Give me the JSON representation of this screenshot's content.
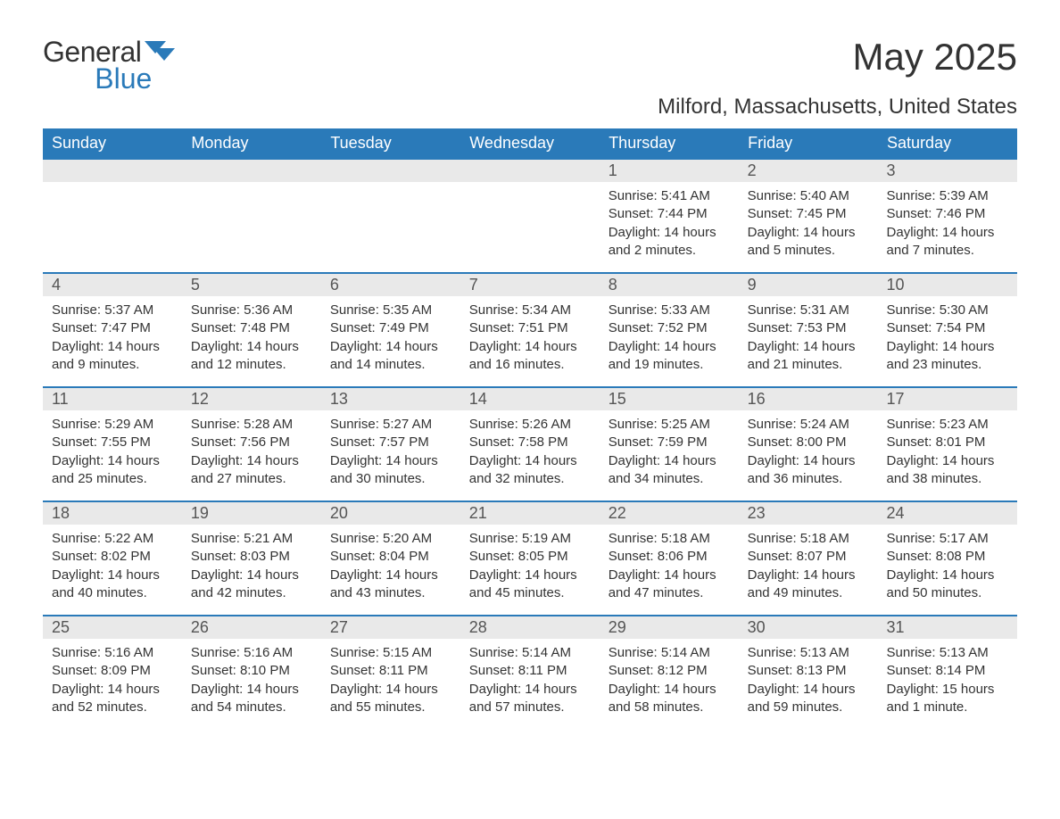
{
  "logo": {
    "general": "General",
    "blue": "Blue"
  },
  "header": {
    "title": "May 2025",
    "subtitle": "Milford, Massachusetts, United States"
  },
  "colors": {
    "accent": "#2a7ab9",
    "header_text": "#ffffff",
    "daynum_bg": "#e9e9e9",
    "text": "#333333",
    "bg": "#ffffff"
  },
  "calendar": {
    "day_headers": [
      "Sunday",
      "Monday",
      "Tuesday",
      "Wednesday",
      "Thursday",
      "Friday",
      "Saturday"
    ],
    "weeks": [
      [
        null,
        null,
        null,
        null,
        {
          "n": "1",
          "sunrise": "Sunrise: 5:41 AM",
          "sunset": "Sunset: 7:44 PM",
          "daylight": "Daylight: 14 hours and 2 minutes."
        },
        {
          "n": "2",
          "sunrise": "Sunrise: 5:40 AM",
          "sunset": "Sunset: 7:45 PM",
          "daylight": "Daylight: 14 hours and 5 minutes."
        },
        {
          "n": "3",
          "sunrise": "Sunrise: 5:39 AM",
          "sunset": "Sunset: 7:46 PM",
          "daylight": "Daylight: 14 hours and 7 minutes."
        }
      ],
      [
        {
          "n": "4",
          "sunrise": "Sunrise: 5:37 AM",
          "sunset": "Sunset: 7:47 PM",
          "daylight": "Daylight: 14 hours and 9 minutes."
        },
        {
          "n": "5",
          "sunrise": "Sunrise: 5:36 AM",
          "sunset": "Sunset: 7:48 PM",
          "daylight": "Daylight: 14 hours and 12 minutes."
        },
        {
          "n": "6",
          "sunrise": "Sunrise: 5:35 AM",
          "sunset": "Sunset: 7:49 PM",
          "daylight": "Daylight: 14 hours and 14 minutes."
        },
        {
          "n": "7",
          "sunrise": "Sunrise: 5:34 AM",
          "sunset": "Sunset: 7:51 PM",
          "daylight": "Daylight: 14 hours and 16 minutes."
        },
        {
          "n": "8",
          "sunrise": "Sunrise: 5:33 AM",
          "sunset": "Sunset: 7:52 PM",
          "daylight": "Daylight: 14 hours and 19 minutes."
        },
        {
          "n": "9",
          "sunrise": "Sunrise: 5:31 AM",
          "sunset": "Sunset: 7:53 PM",
          "daylight": "Daylight: 14 hours and 21 minutes."
        },
        {
          "n": "10",
          "sunrise": "Sunrise: 5:30 AM",
          "sunset": "Sunset: 7:54 PM",
          "daylight": "Daylight: 14 hours and 23 minutes."
        }
      ],
      [
        {
          "n": "11",
          "sunrise": "Sunrise: 5:29 AM",
          "sunset": "Sunset: 7:55 PM",
          "daylight": "Daylight: 14 hours and 25 minutes."
        },
        {
          "n": "12",
          "sunrise": "Sunrise: 5:28 AM",
          "sunset": "Sunset: 7:56 PM",
          "daylight": "Daylight: 14 hours and 27 minutes."
        },
        {
          "n": "13",
          "sunrise": "Sunrise: 5:27 AM",
          "sunset": "Sunset: 7:57 PM",
          "daylight": "Daylight: 14 hours and 30 minutes."
        },
        {
          "n": "14",
          "sunrise": "Sunrise: 5:26 AM",
          "sunset": "Sunset: 7:58 PM",
          "daylight": "Daylight: 14 hours and 32 minutes."
        },
        {
          "n": "15",
          "sunrise": "Sunrise: 5:25 AM",
          "sunset": "Sunset: 7:59 PM",
          "daylight": "Daylight: 14 hours and 34 minutes."
        },
        {
          "n": "16",
          "sunrise": "Sunrise: 5:24 AM",
          "sunset": "Sunset: 8:00 PM",
          "daylight": "Daylight: 14 hours and 36 minutes."
        },
        {
          "n": "17",
          "sunrise": "Sunrise: 5:23 AM",
          "sunset": "Sunset: 8:01 PM",
          "daylight": "Daylight: 14 hours and 38 minutes."
        }
      ],
      [
        {
          "n": "18",
          "sunrise": "Sunrise: 5:22 AM",
          "sunset": "Sunset: 8:02 PM",
          "daylight": "Daylight: 14 hours and 40 minutes."
        },
        {
          "n": "19",
          "sunrise": "Sunrise: 5:21 AM",
          "sunset": "Sunset: 8:03 PM",
          "daylight": "Daylight: 14 hours and 42 minutes."
        },
        {
          "n": "20",
          "sunrise": "Sunrise: 5:20 AM",
          "sunset": "Sunset: 8:04 PM",
          "daylight": "Daylight: 14 hours and 43 minutes."
        },
        {
          "n": "21",
          "sunrise": "Sunrise: 5:19 AM",
          "sunset": "Sunset: 8:05 PM",
          "daylight": "Daylight: 14 hours and 45 minutes."
        },
        {
          "n": "22",
          "sunrise": "Sunrise: 5:18 AM",
          "sunset": "Sunset: 8:06 PM",
          "daylight": "Daylight: 14 hours and 47 minutes."
        },
        {
          "n": "23",
          "sunrise": "Sunrise: 5:18 AM",
          "sunset": "Sunset: 8:07 PM",
          "daylight": "Daylight: 14 hours and 49 minutes."
        },
        {
          "n": "24",
          "sunrise": "Sunrise: 5:17 AM",
          "sunset": "Sunset: 8:08 PM",
          "daylight": "Daylight: 14 hours and 50 minutes."
        }
      ],
      [
        {
          "n": "25",
          "sunrise": "Sunrise: 5:16 AM",
          "sunset": "Sunset: 8:09 PM",
          "daylight": "Daylight: 14 hours and 52 minutes."
        },
        {
          "n": "26",
          "sunrise": "Sunrise: 5:16 AM",
          "sunset": "Sunset: 8:10 PM",
          "daylight": "Daylight: 14 hours and 54 minutes."
        },
        {
          "n": "27",
          "sunrise": "Sunrise: 5:15 AM",
          "sunset": "Sunset: 8:11 PM",
          "daylight": "Daylight: 14 hours and 55 minutes."
        },
        {
          "n": "28",
          "sunrise": "Sunrise: 5:14 AM",
          "sunset": "Sunset: 8:11 PM",
          "daylight": "Daylight: 14 hours and 57 minutes."
        },
        {
          "n": "29",
          "sunrise": "Sunrise: 5:14 AM",
          "sunset": "Sunset: 8:12 PM",
          "daylight": "Daylight: 14 hours and 58 minutes."
        },
        {
          "n": "30",
          "sunrise": "Sunrise: 5:13 AM",
          "sunset": "Sunset: 8:13 PM",
          "daylight": "Daylight: 14 hours and 59 minutes."
        },
        {
          "n": "31",
          "sunrise": "Sunrise: 5:13 AM",
          "sunset": "Sunset: 8:14 PM",
          "daylight": "Daylight: 15 hours and 1 minute."
        }
      ]
    ]
  }
}
